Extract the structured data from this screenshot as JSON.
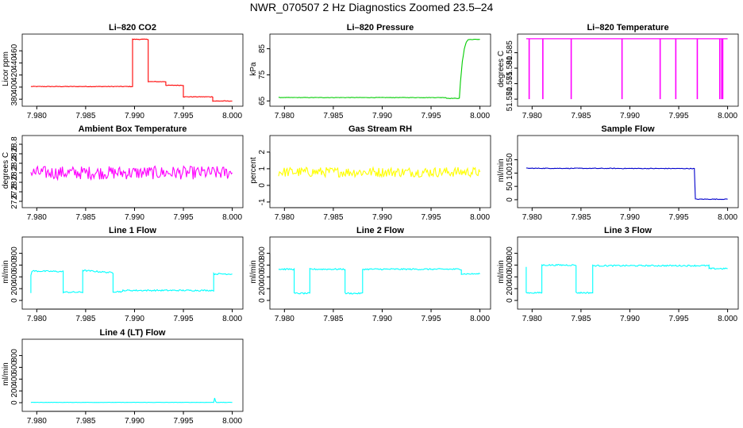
{
  "figure_title": "NWR_070507  2 Hz Diagnostics Zoomed 23.5–24",
  "chart_data": [
    {
      "type": "line",
      "title": "Li–820 CO2",
      "ylabel": "Licor ppm",
      "color": "#ff0000",
      "xlim": [
        7.979,
        8.0006
      ],
      "ylim": [
        375,
        485
      ],
      "xticks": [
        "7.980",
        "7.985",
        "7.990",
        "7.995",
        "8.000"
      ],
      "xtick_values": [
        7.98,
        7.985,
        7.99,
        7.995,
        8.0
      ],
      "yticks": [
        "380",
        "400",
        "420",
        "440",
        "460"
      ],
      "ytick_values": [
        380,
        400,
        420,
        440,
        460
      ],
      "noise": 0.5,
      "spikes": [],
      "x": [
        7.9794,
        7.98,
        7.985,
        7.9898,
        7.9898,
        7.99,
        7.9914,
        7.9914,
        7.9932,
        7.9932,
        7.995,
        7.995,
        7.998,
        7.998,
        8.0
      ],
      "y": [
        401,
        401,
        401,
        401,
        479,
        479,
        479,
        409,
        409,
        403,
        403,
        384,
        384,
        377,
        377
      ]
    },
    {
      "type": "line",
      "title": "Li–820 Pressure",
      "ylabel": "kPa",
      "color": "#00cc00",
      "xlim": [
        7.979,
        8.0006
      ],
      "ylim": [
        64.5,
        90
      ],
      "xticks": [
        "7.980",
        "7.985",
        "7.990",
        "7.995",
        "8.000"
      ],
      "xtick_values": [
        7.98,
        7.985,
        7.99,
        7.995,
        8.0
      ],
      "yticks": [
        "65",
        "75",
        "85"
      ],
      "ytick_values": [
        65,
        75,
        85
      ],
      "noise": 0.08,
      "spikes": [],
      "x": [
        7.9794,
        7.9965,
        7.9966,
        7.9979,
        7.998,
        7.9982,
        7.9984,
        7.9986,
        7.9988,
        8.0
      ],
      "y": [
        66.3,
        66.3,
        66.0,
        66.0,
        72,
        80,
        85,
        87.5,
        88.5,
        88.6
      ]
    },
    {
      "type": "line",
      "title": "Li–820 Temperature",
      "ylabel": "degrees C",
      "color": "#ff00ff",
      "xlim": [
        7.979,
        8.0006
      ],
      "ylim": [
        51.569,
        51.5905
      ],
      "xticks": [
        "7.980",
        "7.985",
        "7.990",
        "7.995",
        "8.000"
      ],
      "xtick_values": [
        7.98,
        7.985,
        7.99,
        7.995,
        8.0
      ],
      "yticks": [
        "51.570",
        "51.575",
        "51.580",
        "51.585"
      ],
      "ytick_values": [
        51.57,
        51.575,
        51.58,
        51.585
      ],
      "noise": 0,
      "spikes_to": 51.57,
      "spikes": [
        7.9797,
        7.9811,
        7.984,
        7.9892,
        7.9931,
        7.9947,
        7.9969,
        7.9992,
        7.9994,
        7.9995
      ],
      "x": [
        7.9794,
        8.0
      ],
      "y": [
        51.5895,
        51.5895
      ]
    },
    {
      "type": "line",
      "title": "Ambient Box Temperature",
      "ylabel": "degrees C",
      "color": "#ff00ff",
      "xlim": [
        7.979,
        8.0006
      ],
      "ylim": [
        27.55,
        28.95
      ],
      "xticks": [
        "7.980",
        "7.985",
        "7.990",
        "7.995",
        "8.000"
      ],
      "xtick_values": [
        7.98,
        7.985,
        7.99,
        7.995,
        8.0
      ],
      "yticks": [
        "27.6",
        "27.8",
        "28.0",
        "28.2",
        "28.4",
        "28.6",
        "28.8"
      ],
      "ytick_values": [
        27.6,
        27.8,
        28.0,
        28.2,
        28.4,
        28.6,
        28.8
      ],
      "noise": 0.14,
      "spikes": [],
      "x": [
        7.9794,
        8.0
      ],
      "y": [
        28.2,
        28.2
      ]
    },
    {
      "type": "line",
      "title": "Gas Stream RH",
      "ylabel": "percent",
      "color": "#ffff00",
      "xlim": [
        7.979,
        8.0006
      ],
      "ylim": [
        -1.1,
        2.9
      ],
      "xticks": [
        "7.980",
        "7.985",
        "7.990",
        "7.995",
        "8.000"
      ],
      "xtick_values": [
        7.98,
        7.985,
        7.99,
        7.995,
        8.0
      ],
      "yticks": [
        "-1",
        "0",
        "1",
        "2"
      ],
      "ytick_values": [
        -1,
        0,
        1,
        2
      ],
      "noise": 0.3,
      "spikes": [],
      "x": [
        7.9794,
        8.0
      ],
      "y": [
        0.8,
        0.8
      ]
    },
    {
      "type": "line",
      "title": "Sample Flow",
      "ylabel": "ml/min",
      "color": "#0000cc",
      "xlim": [
        7.979,
        8.0006
      ],
      "ylim": [
        -15,
        235
      ],
      "xticks": [
        "7.980",
        "7.985",
        "7.990",
        "7.995",
        "8.000"
      ],
      "xtick_values": [
        7.98,
        7.985,
        7.99,
        7.995,
        8.0
      ],
      "yticks": [
        "0",
        "50",
        "100",
        "150"
      ],
      "ytick_values": [
        0,
        50,
        100,
        150
      ],
      "noise": 1.2,
      "spikes": [],
      "x": [
        7.9794,
        7.9966,
        7.9967,
        8.0
      ],
      "y": [
        118,
        117,
        2,
        2
      ]
    },
    {
      "type": "line",
      "title": "Line 1 Flow",
      "ylabel": "ml/min",
      "color": "#00ffff",
      "xlim": [
        7.979,
        8.0006
      ],
      "ylim": [
        -80,
        1050
      ],
      "xticks": [
        "7.980",
        "7.985",
        "7.990",
        "7.995",
        "8.000"
      ],
      "xtick_values": [
        7.98,
        7.985,
        7.99,
        7.995,
        8.0
      ],
      "yticks": [
        "0",
        "200",
        "400",
        "600",
        "800"
      ],
      "ytick_values": [
        0,
        200,
        400,
        600,
        800
      ],
      "noise": 12,
      "spikes": [],
      "x": [
        7.9794,
        7.9794,
        7.9795,
        7.9827,
        7.9827,
        7.9847,
        7.9847,
        7.9878,
        7.9878,
        7.9888,
        7.9888,
        7.9981,
        7.9981,
        8.0
      ],
      "y": [
        130,
        420,
        500,
        490,
        140,
        140,
        510,
        470,
        150,
        150,
        170,
        170,
        450,
        450
      ]
    },
    {
      "type": "line",
      "title": "Line 2 Flow",
      "ylabel": "ml/min",
      "color": "#00ffff",
      "xlim": [
        7.979,
        8.0006
      ],
      "ylim": [
        -80,
        1050
      ],
      "xticks": [
        "7.980",
        "7.985",
        "7.990",
        "7.995",
        "8.000"
      ],
      "xtick_values": [
        7.98,
        7.985,
        7.99,
        7.995,
        8.0
      ],
      "yticks": [
        "0",
        "200",
        "400",
        "600",
        "800"
      ],
      "ytick_values": [
        0,
        200,
        400,
        600,
        800
      ],
      "noise": 12,
      "spikes": [],
      "x": [
        7.9794,
        7.981,
        7.981,
        7.9826,
        7.9826,
        7.9862,
        7.9862,
        7.988,
        7.988,
        7.9981,
        7.9981,
        8.0
      ],
      "y": [
        530,
        530,
        120,
        120,
        530,
        530,
        120,
        120,
        530,
        530,
        450,
        450
      ]
    },
    {
      "type": "line",
      "title": "Line 3 Flow",
      "ylabel": "ml/min",
      "color": "#00ffff",
      "xlim": [
        7.979,
        8.0006
      ],
      "ylim": [
        -80,
        1050
      ],
      "xticks": [
        "7.980",
        "7.985",
        "7.990",
        "7.995",
        "8.000"
      ],
      "xtick_values": [
        7.98,
        7.985,
        7.99,
        7.995,
        8.0
      ],
      "yticks": [
        "0",
        "200",
        "400",
        "600",
        "800"
      ],
      "ytick_values": [
        0,
        200,
        400,
        600,
        800
      ],
      "noise": 12,
      "spikes": [],
      "x": [
        7.9794,
        7.9794,
        7.9795,
        7.981,
        7.981,
        7.9845,
        7.9845,
        7.9862,
        7.9862,
        7.9981,
        7.9981,
        8.0
      ],
      "y": [
        580,
        130,
        130,
        130,
        600,
        600,
        130,
        130,
        590,
        590,
        540,
        540
      ]
    },
    {
      "type": "line",
      "title": "Line 4 (LT) Flow",
      "ylabel": "ml/min",
      "color": "#00ffff",
      "xlim": [
        7.979,
        8.0006
      ],
      "ylim": [
        -80,
        1050
      ],
      "xticks": [
        "7.980",
        "7.985",
        "7.990",
        "7.995",
        "8.000"
      ],
      "xtick_values": [
        7.98,
        7.985,
        7.99,
        7.995,
        8.0
      ],
      "yticks": [
        "0",
        "200",
        "400",
        "600",
        "800"
      ],
      "ytick_values": [
        0,
        200,
        400,
        600,
        800
      ],
      "noise": 2,
      "spikes": [],
      "x": [
        7.9794,
        7.9981,
        7.9982,
        7.9983,
        7.9984,
        8.0
      ],
      "y": [
        5,
        5,
        80,
        20,
        5,
        5
      ]
    }
  ]
}
